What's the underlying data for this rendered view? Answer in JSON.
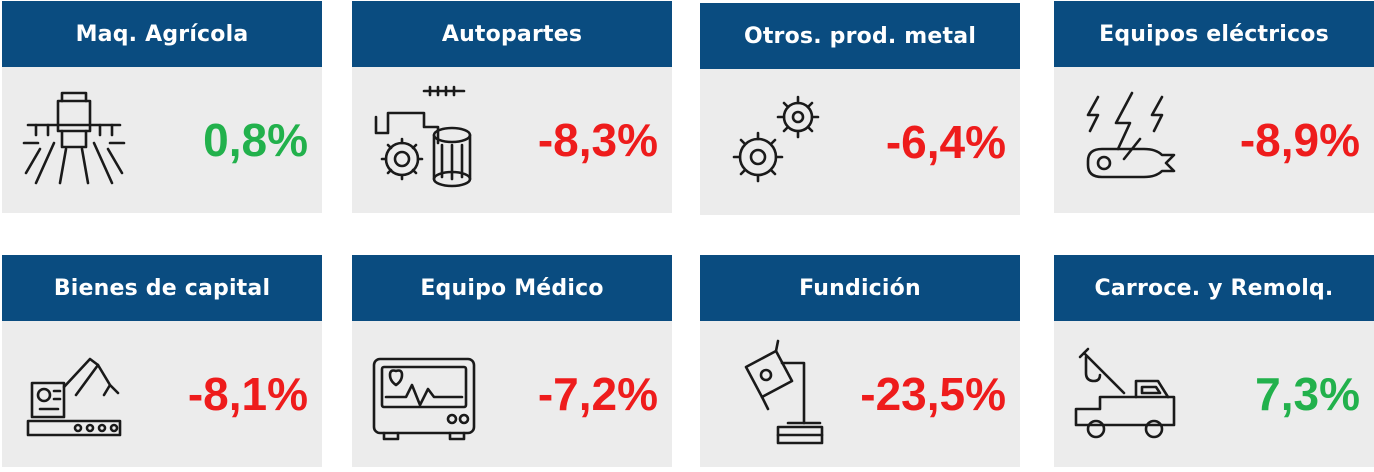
{
  "cards": [
    {
      "title": "Maq. Agrícola",
      "value": "0,8%",
      "trend": "positive",
      "icon": "tractor-icon"
    },
    {
      "title": "Autopartes",
      "value": "-8,3%",
      "trend": "negative",
      "icon": "engine-parts-icon"
    },
    {
      "title": "Otros. prod. metal",
      "value": "-6,4%",
      "trend": "negative",
      "icon": "gears-icon"
    },
    {
      "title": "Equipos eléctricos",
      "value": "-8,9%",
      "trend": "negative",
      "icon": "electric-wrench-icon"
    },
    {
      "title": "Bienes de capital",
      "value": "-8,1%",
      "trend": "negative",
      "icon": "robot-arm-icon"
    },
    {
      "title": "Equipo Médico",
      "value": "-7,2%",
      "trend": "negative",
      "icon": "medical-monitor-icon"
    },
    {
      "title": "Fundición",
      "value": "-23,5%",
      "trend": "negative",
      "icon": "foundry-ladle-icon"
    },
    {
      "title": "Carroce. y Remolq.",
      "value": "7,3%",
      "trend": "positive",
      "icon": "tow-truck-icon"
    }
  ],
  "colors": {
    "header": "#0a4c80",
    "body": "#ececec",
    "positive": "#22b14c",
    "negative": "#ee1c1c"
  }
}
